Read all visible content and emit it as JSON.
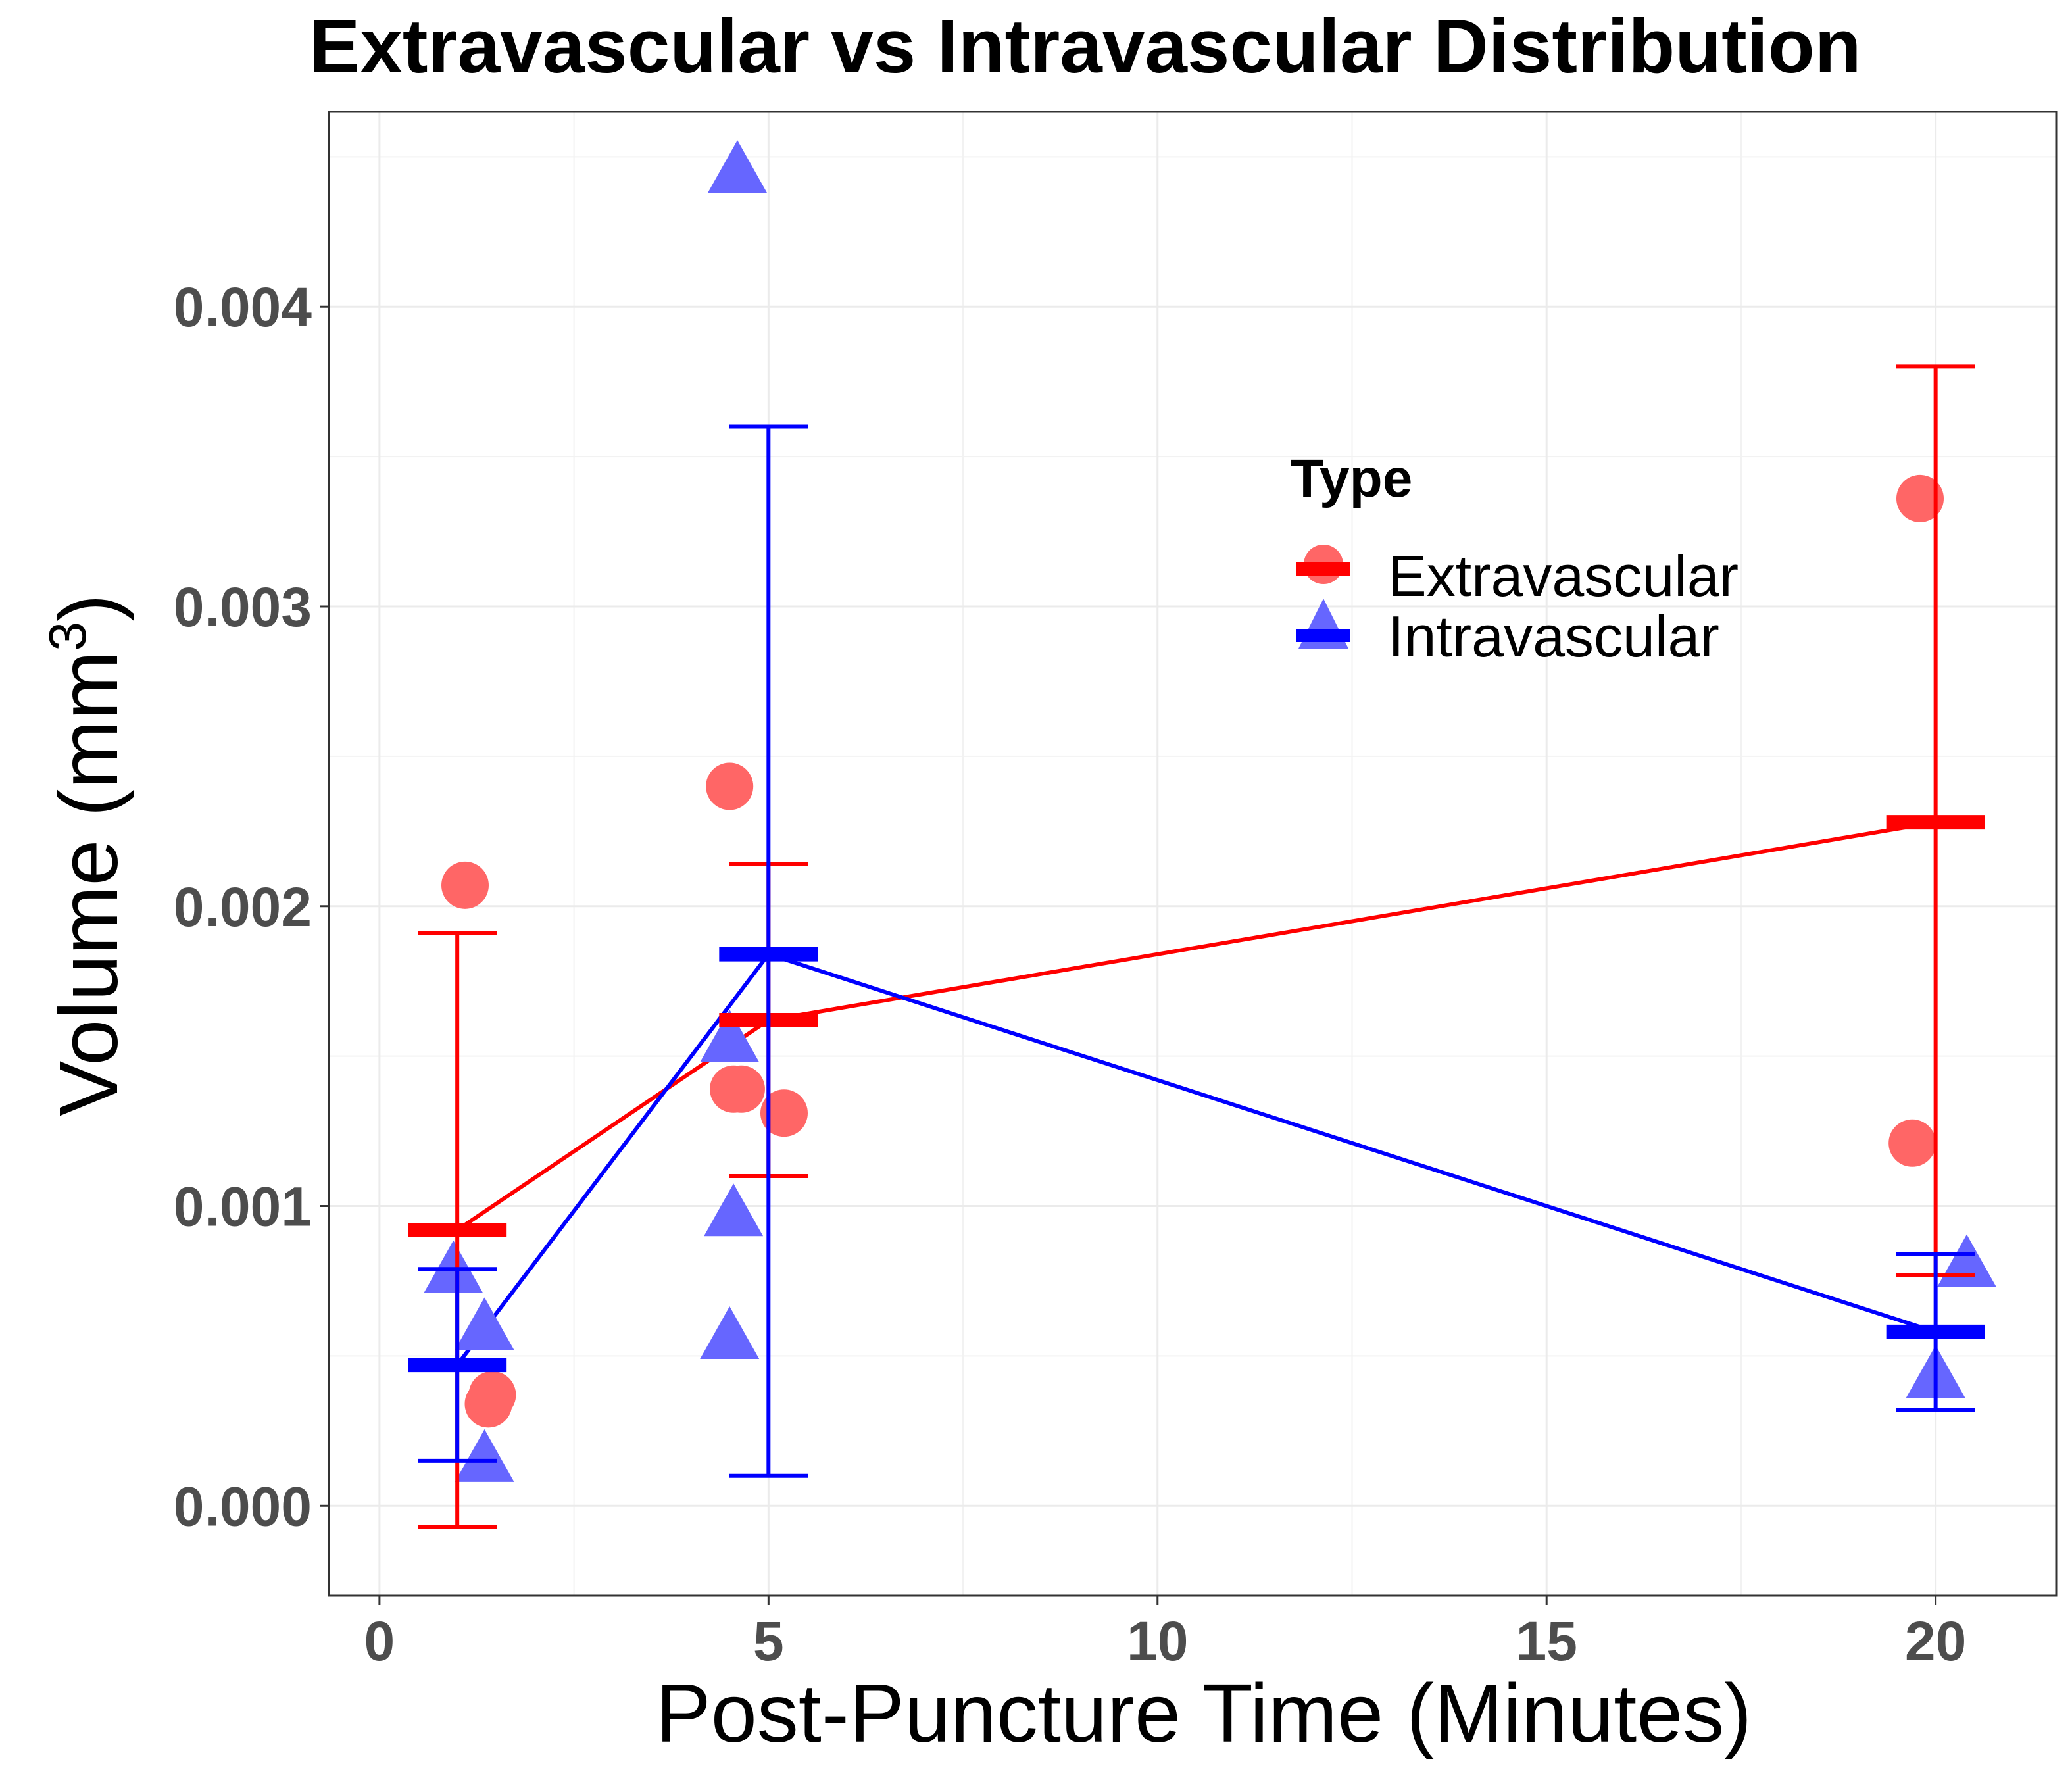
{
  "chart_data": {
    "type": "scatter",
    "title": "Extravascular vs Intravascular Distribution",
    "xlabel": "Post-Puncture Time (Minutes)",
    "ylabel": "Volume (mm",
    "ylabel_superscript": "3",
    "ylabel_suffix": ")",
    "xlim": [
      -0.65,
      21.55
    ],
    "ylim": [
      -0.0003,
      0.00465
    ],
    "x_ticks": [
      0,
      5,
      10,
      15,
      20
    ],
    "x_tick_labels": [
      "0",
      "5",
      "10",
      "15",
      "20"
    ],
    "y_ticks": [
      0,
      0.001,
      0.002,
      0.003,
      0.004
    ],
    "y_tick_labels": [
      "0.000",
      "0.001",
      "0.002",
      "0.003",
      "0.004"
    ],
    "grid": true,
    "legend": {
      "title": "Type",
      "position": "upper-right-inside",
      "entries": [
        "Extravascular",
        "Intravascular"
      ]
    },
    "series": [
      {
        "name": "Extravascular",
        "color": "#ff0000",
        "point_color": "#ff6666",
        "marker": "circle",
        "points": [
          {
            "x": 1.1,
            "y": 0.00207
          },
          {
            "x": 1.4,
            "y": 0.00034
          },
          {
            "x": 1.45,
            "y": 0.00037
          },
          {
            "x": 4.5,
            "y": 0.0024
          },
          {
            "x": 4.55,
            "y": 0.00139
          },
          {
            "x": 4.65,
            "y": 0.00139
          },
          {
            "x": 5.2,
            "y": 0.00131
          },
          {
            "x": 19.7,
            "y": 0.00121
          },
          {
            "x": 19.8,
            "y": 0.00336
          }
        ],
        "means": [
          {
            "x": 1.0,
            "y": 0.00092,
            "lower": -7e-05,
            "upper": 0.00191
          },
          {
            "x": 5.0,
            "y": 0.00162,
            "lower": 0.0011,
            "upper": 0.00214
          },
          {
            "x": 20.0,
            "y": 0.00228,
            "lower": 0.00077,
            "upper": 0.0038
          }
        ]
      },
      {
        "name": "Intravascular",
        "color": "#0000ff",
        "point_color": "#6666ff",
        "marker": "triangle",
        "points": [
          {
            "x": 0.95,
            "y": 0.00078
          },
          {
            "x": 1.35,
            "y": 0.00059
          },
          {
            "x": 1.35,
            "y": 0.00015
          },
          {
            "x": 4.6,
            "y": 0.00445
          },
          {
            "x": 4.5,
            "y": 0.00155
          },
          {
            "x": 4.55,
            "y": 0.00097
          },
          {
            "x": 4.5,
            "y": 0.00056
          },
          {
            "x": 20.4,
            "y": 0.0008
          },
          {
            "x": 20.0,
            "y": 0.00043
          }
        ],
        "means": [
          {
            "x": 1.0,
            "y": 0.00047,
            "lower": 0.00015,
            "upper": 0.00079
          },
          {
            "x": 5.0,
            "y": 0.00184,
            "lower": 0.0001,
            "upper": 0.0036
          },
          {
            "x": 20.0,
            "y": 0.00058,
            "lower": 0.00032,
            "upper": 0.00084
          }
        ]
      }
    ]
  }
}
